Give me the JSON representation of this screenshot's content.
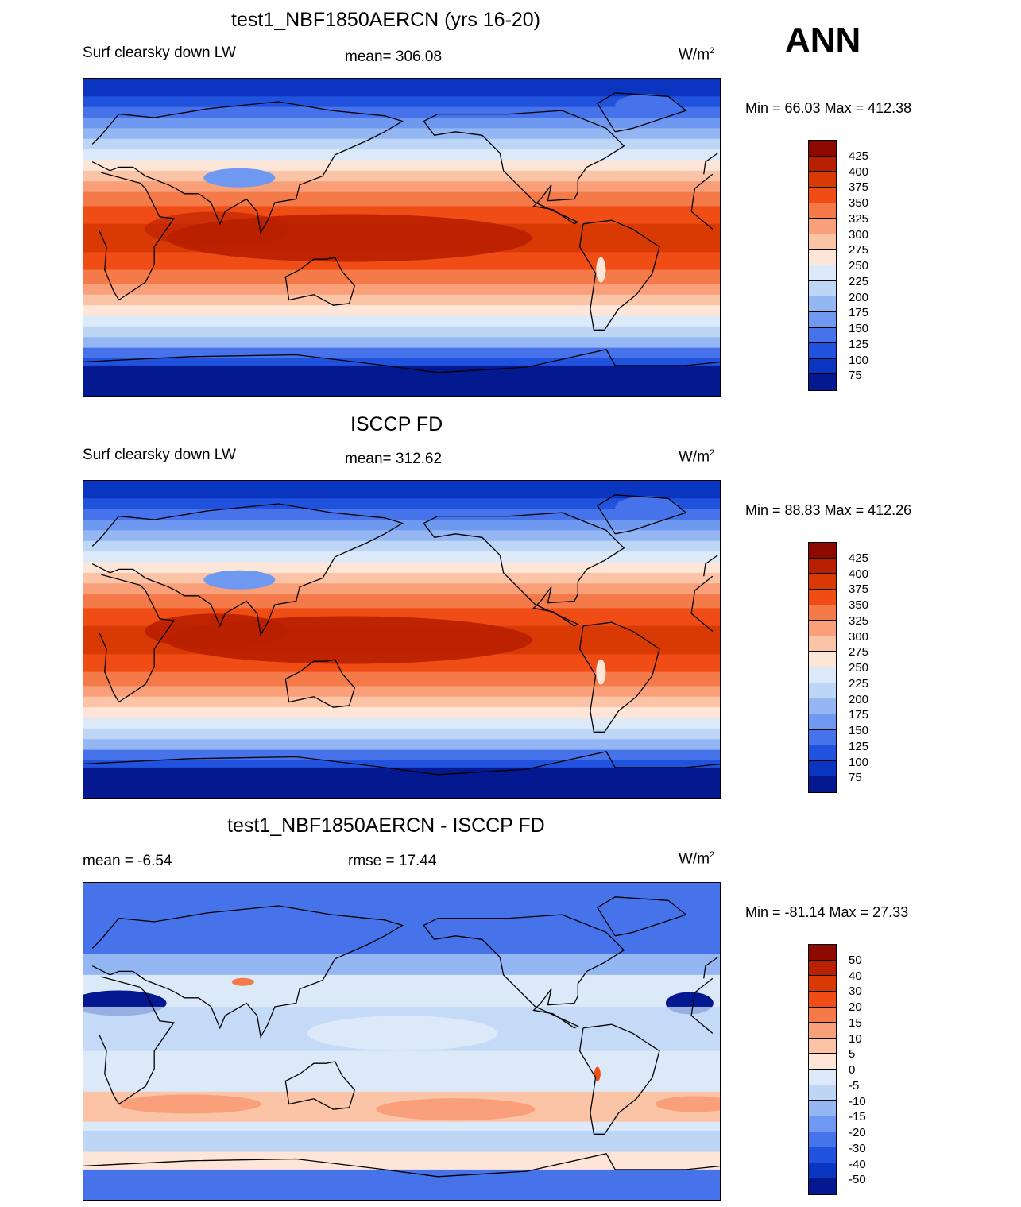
{
  "season": "ANN",
  "units_base": "W/m",
  "units_exp": "2",
  "panels": [
    {
      "title": "test1_NBF1850AERCN (yrs 16-20)",
      "left": "Surf clearsky down LW",
      "center": "mean= 306.08",
      "minmax": "Min =  66.03 Max = 412.38",
      "kind": "model"
    },
    {
      "title": "ISCCP FD",
      "left": "Surf clearsky down LW",
      "center": "mean= 312.62",
      "minmax": "Min =  88.83 Max = 412.26",
      "kind": "obs"
    },
    {
      "title": "test1_NBF1850AERCN - ISCCP FD",
      "left": "mean =  -6.54",
      "center": "rmse =  17.44",
      "minmax": "Min = -81.14 Max =  27.33",
      "kind": "diff"
    }
  ],
  "colorbars": {
    "abs": {
      "labels": [
        "425",
        "400",
        "375",
        "350",
        "325",
        "300",
        "275",
        "250",
        "225",
        "200",
        "175",
        "150",
        "125",
        "100",
        "75"
      ],
      "colors": [
        "#8c0a00",
        "#b82000",
        "#d93a05",
        "#f04c15",
        "#f57a4a",
        "#f9a07b",
        "#fbc4a6",
        "#fde6d8",
        "#dce9f8",
        "#bed6f6",
        "#94b7f4",
        "#6f99f0",
        "#4673ea",
        "#2152de",
        "#0a35c0",
        "#041890"
      ]
    },
    "diff": {
      "labels": [
        "50",
        "40",
        "30",
        "20",
        "15",
        "10",
        "5",
        "0",
        "-5",
        "-10",
        "-15",
        "-20",
        "-30",
        "-40",
        "-50"
      ],
      "colors": [
        "#8c0a00",
        "#b82000",
        "#d93a05",
        "#f04c15",
        "#f57a4a",
        "#f9a07b",
        "#fbc4a6",
        "#fde6d8",
        "#dce9f8",
        "#bed6f6",
        "#94b7f4",
        "#6f99f0",
        "#4673ea",
        "#2152de",
        "#0a35c0",
        "#041890"
      ]
    }
  }
}
